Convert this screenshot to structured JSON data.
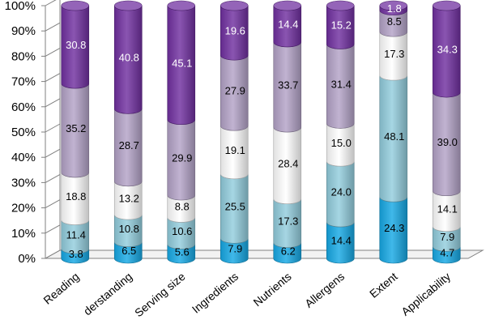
{
  "chart_data": {
    "type": "bar",
    "stacked": true,
    "percent": true,
    "three_d": true,
    "grid": false,
    "categories": [
      "Reading",
      "Understanding",
      "Serving size",
      "Ingredients",
      "Nutrients",
      "Allergens",
      "Extent",
      "Applicability"
    ],
    "category_labels_visible": [
      "Reading",
      "derstanding",
      "Serving size",
      "Ingredients",
      "Nutrients",
      "Allergens",
      "Extent",
      "Applicability"
    ],
    "ylim": [
      0,
      100
    ],
    "yticks": [
      "0%",
      "10%",
      "20%",
      "30%",
      "40%",
      "50%",
      "60%",
      "70%",
      "80%",
      "90%",
      "100%"
    ],
    "series": [
      {
        "color": "#16a8e4",
        "label_color": "#000000",
        "values": [
          3.8,
          6.5,
          5.6,
          7.9,
          6.2,
          14.4,
          24.3,
          4.7
        ]
      },
      {
        "color": "#92cddd",
        "label_color": "#000000",
        "values": [
          11.4,
          10.8,
          10.6,
          25.5,
          17.3,
          24.0,
          48.1,
          7.9
        ]
      },
      {
        "color": "#ffffff",
        "label_color": "#000000",
        "values": [
          18.8,
          13.2,
          8.8,
          19.1,
          28.4,
          15.0,
          17.3,
          14.1
        ]
      },
      {
        "color": "#b3a2c7",
        "label_color": "#000000",
        "values": [
          35.2,
          28.7,
          29.9,
          27.9,
          33.7,
          31.4,
          8.5,
          39.0
        ]
      },
      {
        "color": "#7030a0",
        "label_color": "#ffffff",
        "values": [
          30.8,
          40.8,
          45.1,
          19.6,
          14.4,
          15.2,
          1.8,
          34.3
        ]
      }
    ],
    "data_labels": [
      [
        "3.8",
        "11.4",
        "18.8",
        "35.2",
        "30.8"
      ],
      [
        "6.5",
        "10.8",
        "13.2",
        "28.7",
        "40.8"
      ],
      [
        "5.6",
        "10.6",
        "8.8",
        "29.9",
        "45.1"
      ],
      [
        "7.9",
        "25.5",
        "19.1",
        "27.9",
        "19.6"
      ],
      [
        "6.2",
        "17.3",
        "28.4",
        "33.7",
        "14.4"
      ],
      [
        "14.4",
        "24.0",
        "15.0",
        "31.4",
        "15.2"
      ],
      [
        "24.3",
        "48.1",
        "17.3",
        "8.5",
        "1.8"
      ],
      [
        "4.7",
        "7.9",
        "14.1",
        "39.0",
        "34.3"
      ]
    ]
  }
}
